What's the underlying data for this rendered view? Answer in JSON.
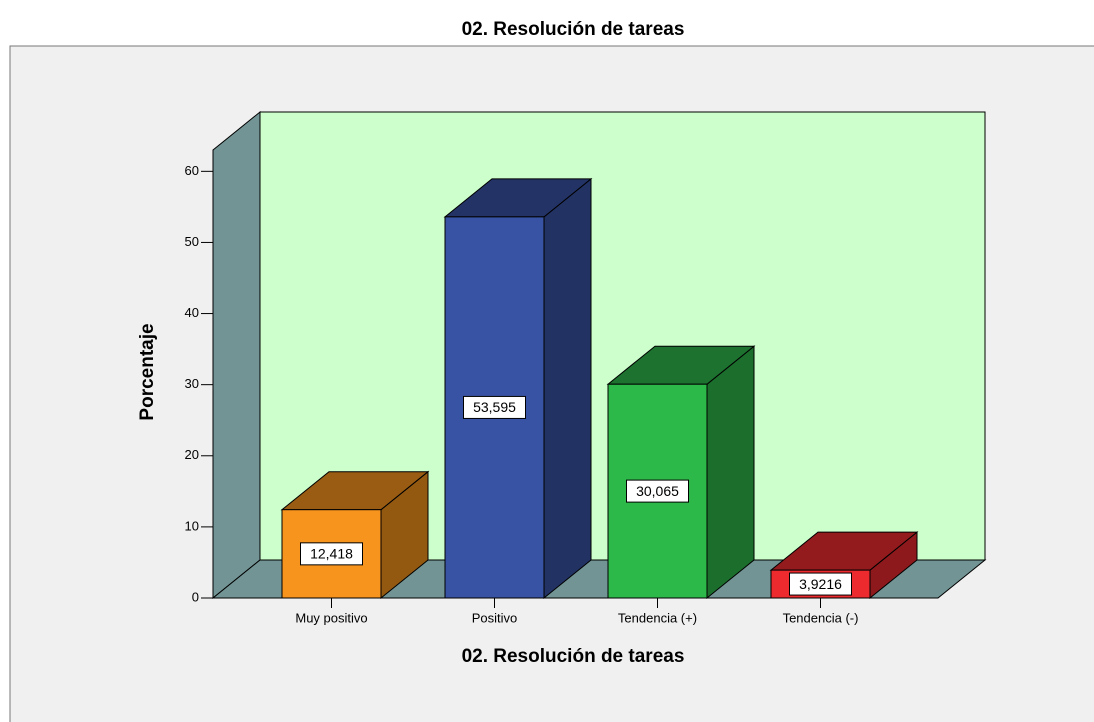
{
  "chart_data": {
    "type": "bar3d",
    "title": "02. Resolución de tareas",
    "x_label": "02. Resolución de tareas",
    "y_label": "Porcentaje",
    "categories": [
      "Muy positivo",
      "Positivo",
      "Tendencia (+)",
      "Tendencia (-)"
    ],
    "values": [
      12.418,
      53.595,
      30.065,
      3.9216
    ],
    "value_labels": [
      "12,418",
      "53,595",
      "30,065",
      "3,9216"
    ],
    "colors": [
      "#f7941d",
      "#3953a4",
      "#2db84a",
      "#ed2a2e"
    ],
    "ylim": [
      0,
      63
    ],
    "yticks": [
      0,
      10,
      20,
      30,
      40,
      50,
      60
    ]
  }
}
